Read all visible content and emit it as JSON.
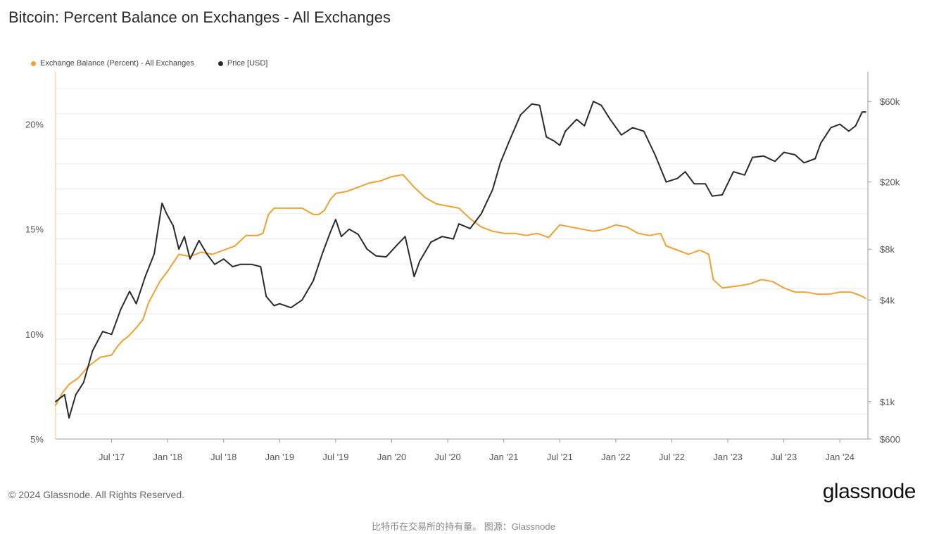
{
  "title": "Bitcoin: Percent Balance on Exchanges - All Exchanges",
  "legend": {
    "balance_label": "Exchange Balance (Percent) - All Exchanges",
    "price_label": "Price [USD]"
  },
  "colors": {
    "balance": "#f0a030",
    "price": "#2a2a2a",
    "grid": "#ececec",
    "axis": "#9a9a9a"
  },
  "footer": {
    "copyright": "© 2024 Glassnode. All Rights Reserved.",
    "logo": "glassnode",
    "caption": "比特币在交易所的持有量。 图源：Glassnode"
  },
  "chart_data": {
    "type": "line",
    "x_range": [
      2017.0,
      2024.25
    ],
    "x_ticks": [
      {
        "t": 2017.5,
        "label": "Jul '17"
      },
      {
        "t": 2018.0,
        "label": "Jan '18"
      },
      {
        "t": 2018.5,
        "label": "Jul '18"
      },
      {
        "t": 2019.0,
        "label": "Jan '19"
      },
      {
        "t": 2019.5,
        "label": "Jul '19"
      },
      {
        "t": 2020.0,
        "label": "Jan '20"
      },
      {
        "t": 2020.5,
        "label": "Jul '20"
      },
      {
        "t": 2021.0,
        "label": "Jan '21"
      },
      {
        "t": 2021.5,
        "label": "Jul '21"
      },
      {
        "t": 2022.0,
        "label": "Jan '22"
      },
      {
        "t": 2022.5,
        "label": "Jul '22"
      },
      {
        "t": 2023.0,
        "label": "Jan '23"
      },
      {
        "t": 2023.5,
        "label": "Jul '23"
      },
      {
        "t": 2024.0,
        "label": "Jan '24"
      }
    ],
    "y_left": {
      "range": [
        5,
        22.5
      ],
      "ticks": [
        {
          "v": 5,
          "label": "5%"
        },
        {
          "v": 10,
          "label": "10%"
        },
        {
          "v": 15,
          "label": "15%"
        },
        {
          "v": 20,
          "label": "20%"
        }
      ]
    },
    "y_right": {
      "scale": "log",
      "range": [
        600,
        90000
      ],
      "ticks": [
        {
          "v": 600,
          "label": "$600"
        },
        {
          "v": 1000,
          "label": "$1k"
        },
        {
          "v": 4000,
          "label": "$4k"
        },
        {
          "v": 8000,
          "label": "$8k"
        },
        {
          "v": 20000,
          "label": "$20k"
        },
        {
          "v": 60000,
          "label": "$60k"
        }
      ]
    },
    "series": [
      {
        "name": "Exchange Balance (Percent) - All Exchanges",
        "axis": "left",
        "points": [
          [
            2017.0,
            6.6
          ],
          [
            2017.06,
            7.2
          ],
          [
            2017.12,
            7.6
          ],
          [
            2017.2,
            7.9
          ],
          [
            2017.3,
            8.5
          ],
          [
            2017.4,
            8.9
          ],
          [
            2017.5,
            9.0
          ],
          [
            2017.55,
            9.4
          ],
          [
            2017.6,
            9.7
          ],
          [
            2017.65,
            9.9
          ],
          [
            2017.72,
            10.3
          ],
          [
            2017.78,
            10.7
          ],
          [
            2017.83,
            11.5
          ],
          [
            2017.88,
            12.0
          ],
          [
            2017.93,
            12.5
          ],
          [
            2018.0,
            13.0
          ],
          [
            2018.1,
            13.8
          ],
          [
            2018.2,
            13.7
          ],
          [
            2018.3,
            13.9
          ],
          [
            2018.4,
            13.8
          ],
          [
            2018.5,
            14.0
          ],
          [
            2018.6,
            14.2
          ],
          [
            2018.7,
            14.7
          ],
          [
            2018.8,
            14.7
          ],
          [
            2018.85,
            14.8
          ],
          [
            2018.9,
            15.7
          ],
          [
            2018.95,
            16.0
          ],
          [
            2019.0,
            16.0
          ],
          [
            2019.1,
            16.0
          ],
          [
            2019.2,
            16.0
          ],
          [
            2019.3,
            15.7
          ],
          [
            2019.35,
            15.7
          ],
          [
            2019.4,
            15.9
          ],
          [
            2019.45,
            16.4
          ],
          [
            2019.5,
            16.7
          ],
          [
            2019.6,
            16.8
          ],
          [
            2019.7,
            17.0
          ],
          [
            2019.8,
            17.2
          ],
          [
            2019.9,
            17.3
          ],
          [
            2020.0,
            17.5
          ],
          [
            2020.1,
            17.6
          ],
          [
            2020.15,
            17.3
          ],
          [
            2020.2,
            17.0
          ],
          [
            2020.3,
            16.5
          ],
          [
            2020.4,
            16.2
          ],
          [
            2020.5,
            16.1
          ],
          [
            2020.6,
            16.0
          ],
          [
            2020.7,
            15.5
          ],
          [
            2020.8,
            15.1
          ],
          [
            2020.9,
            14.9
          ],
          [
            2021.0,
            14.8
          ],
          [
            2021.1,
            14.8
          ],
          [
            2021.2,
            14.7
          ],
          [
            2021.3,
            14.8
          ],
          [
            2021.4,
            14.6
          ],
          [
            2021.5,
            15.2
          ],
          [
            2021.6,
            15.1
          ],
          [
            2021.7,
            15.0
          ],
          [
            2021.8,
            14.9
          ],
          [
            2021.9,
            15.0
          ],
          [
            2022.0,
            15.2
          ],
          [
            2022.1,
            15.1
          ],
          [
            2022.2,
            14.8
          ],
          [
            2022.3,
            14.7
          ],
          [
            2022.4,
            14.8
          ],
          [
            2022.45,
            14.2
          ],
          [
            2022.55,
            14.0
          ],
          [
            2022.65,
            13.8
          ],
          [
            2022.75,
            14.0
          ],
          [
            2022.83,
            13.8
          ],
          [
            2022.87,
            12.6
          ],
          [
            2022.95,
            12.2
          ],
          [
            2023.1,
            12.3
          ],
          [
            2023.2,
            12.4
          ],
          [
            2023.3,
            12.6
          ],
          [
            2023.4,
            12.5
          ],
          [
            2023.5,
            12.2
          ],
          [
            2023.6,
            12.0
          ],
          [
            2023.7,
            12.0
          ],
          [
            2023.8,
            11.9
          ],
          [
            2023.9,
            11.9
          ],
          [
            2024.0,
            12.0
          ],
          [
            2024.1,
            12.0
          ],
          [
            2024.2,
            11.8
          ],
          [
            2024.23,
            11.7
          ]
        ]
      },
      {
        "name": "Price [USD]",
        "axis": "right",
        "points": [
          [
            2017.0,
            1000
          ],
          [
            2017.08,
            1100
          ],
          [
            2017.12,
            800
          ],
          [
            2017.18,
            1100
          ],
          [
            2017.25,
            1300
          ],
          [
            2017.33,
            2000
          ],
          [
            2017.42,
            2600
          ],
          [
            2017.5,
            2500
          ],
          [
            2017.58,
            3500
          ],
          [
            2017.66,
            4500
          ],
          [
            2017.72,
            3800
          ],
          [
            2017.8,
            5500
          ],
          [
            2017.88,
            7500
          ],
          [
            2017.95,
            15000
          ],
          [
            2017.99,
            13000
          ],
          [
            2018.05,
            11000
          ],
          [
            2018.1,
            8000
          ],
          [
            2018.15,
            9500
          ],
          [
            2018.2,
            7000
          ],
          [
            2018.28,
            9000
          ],
          [
            2018.35,
            7500
          ],
          [
            2018.42,
            6500
          ],
          [
            2018.5,
            7000
          ],
          [
            2018.58,
            6300
          ],
          [
            2018.65,
            6500
          ],
          [
            2018.75,
            6500
          ],
          [
            2018.83,
            6300
          ],
          [
            2018.88,
            4200
          ],
          [
            2018.95,
            3700
          ],
          [
            2019.0,
            3800
          ],
          [
            2019.1,
            3600
          ],
          [
            2019.2,
            4000
          ],
          [
            2019.3,
            5200
          ],
          [
            2019.38,
            7500
          ],
          [
            2019.45,
            10000
          ],
          [
            2019.5,
            12000
          ],
          [
            2019.55,
            9500
          ],
          [
            2019.62,
            10500
          ],
          [
            2019.7,
            9800
          ],
          [
            2019.78,
            8000
          ],
          [
            2019.86,
            7300
          ],
          [
            2019.95,
            7200
          ],
          [
            2020.05,
            8500
          ],
          [
            2020.12,
            9500
          ],
          [
            2020.2,
            5500
          ],
          [
            2020.25,
            6800
          ],
          [
            2020.35,
            8800
          ],
          [
            2020.45,
            9500
          ],
          [
            2020.55,
            9200
          ],
          [
            2020.6,
            11300
          ],
          [
            2020.7,
            10600
          ],
          [
            2020.8,
            13000
          ],
          [
            2020.9,
            18000
          ],
          [
            2020.97,
            26000
          ],
          [
            2021.05,
            35000
          ],
          [
            2021.15,
            50000
          ],
          [
            2021.25,
            58000
          ],
          [
            2021.32,
            57000
          ],
          [
            2021.38,
            37000
          ],
          [
            2021.45,
            35000
          ],
          [
            2021.5,
            33000
          ],
          [
            2021.55,
            40000
          ],
          [
            2021.65,
            47000
          ],
          [
            2021.72,
            43000
          ],
          [
            2021.8,
            60000
          ],
          [
            2021.87,
            57000
          ],
          [
            2021.95,
            47000
          ],
          [
            2022.05,
            38000
          ],
          [
            2022.15,
            42000
          ],
          [
            2022.25,
            40000
          ],
          [
            2022.35,
            29000
          ],
          [
            2022.45,
            20000
          ],
          [
            2022.55,
            21000
          ],
          [
            2022.62,
            23000
          ],
          [
            2022.7,
            19500
          ],
          [
            2022.8,
            19500
          ],
          [
            2022.86,
            16500
          ],
          [
            2022.95,
            16800
          ],
          [
            2023.05,
            23000
          ],
          [
            2023.15,
            22000
          ],
          [
            2023.22,
            28000
          ],
          [
            2023.32,
            28500
          ],
          [
            2023.42,
            26500
          ],
          [
            2023.5,
            30000
          ],
          [
            2023.6,
            29000
          ],
          [
            2023.68,
            26000
          ],
          [
            2023.78,
            27500
          ],
          [
            2023.83,
            34000
          ],
          [
            2023.92,
            42000
          ],
          [
            2024.0,
            44000
          ],
          [
            2024.08,
            40000
          ],
          [
            2024.14,
            43000
          ],
          [
            2024.2,
            52000
          ],
          [
            2024.23,
            52000
          ]
        ]
      }
    ]
  }
}
